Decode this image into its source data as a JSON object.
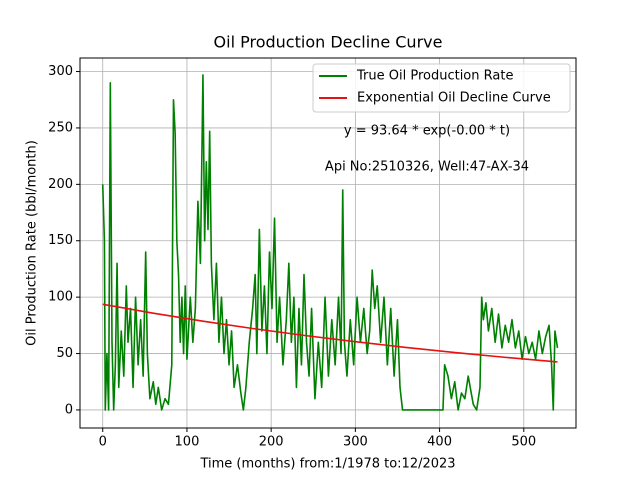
{
  "chart_data": {
    "type": "line",
    "title": "Oil Production Decline Curve",
    "xlabel": "Time (months) from:1/1978 to:12/2023",
    "ylabel": "Oil Production Rate (bbl/month)",
    "annotations": [
      "y = 93.64 * exp(-0.00 * t)",
      "Api No:2510326, Well:47-AX-34"
    ],
    "xlim": [
      -27,
      562
    ],
    "ylim": [
      -16,
      312
    ],
    "xticks": [
      0,
      100,
      200,
      300,
      400,
      500
    ],
    "yticks": [
      0,
      50,
      100,
      150,
      200,
      250,
      300
    ],
    "grid": true,
    "legend": "upper right",
    "series": [
      {
        "name": "True Oil Production Rate",
        "color": "#008000",
        "x": [
          0,
          2,
          3,
          5,
          7,
          9,
          11,
          13,
          15,
          17,
          19,
          22,
          25,
          28,
          30,
          33,
          36,
          39,
          42,
          45,
          48,
          51,
          53,
          56,
          60,
          63,
          66,
          70,
          74,
          78,
          82,
          84,
          86,
          88,
          90,
          92,
          94,
          96,
          98,
          100,
          104,
          107,
          110,
          113,
          116,
          119,
          121,
          123,
          125,
          127,
          129,
          132,
          135,
          138,
          141,
          144,
          147,
          150,
          153,
          156,
          160,
          164,
          167,
          170,
          174,
          178,
          181,
          183,
          186,
          189,
          192,
          195,
          198,
          201,
          204,
          207,
          210,
          214,
          218,
          221,
          224,
          227,
          230,
          233,
          236,
          239,
          242,
          245,
          248,
          252,
          256,
          260,
          264,
          268,
          272,
          276,
          280,
          283,
          285,
          287,
          290,
          294,
          298,
          302,
          306,
          310,
          314,
          317,
          320,
          323,
          326,
          330,
          334,
          338,
          342,
          346,
          350,
          353,
          356,
          380,
          404,
          406,
          410,
          414,
          418,
          422,
          426,
          430,
          434,
          440,
          444,
          448,
          450,
          452,
          455,
          458,
          462,
          466,
          470,
          474,
          478,
          482,
          486,
          490,
          494,
          498,
          502,
          506,
          510,
          514,
          518,
          522,
          526,
          530,
          533,
          535,
          537,
          540
        ],
        "values": [
          200,
          150,
          0,
          50,
          0,
          290,
          60,
          0,
          40,
          130,
          20,
          70,
          30,
          110,
          60,
          90,
          20,
          100,
          40,
          80,
          30,
          140,
          50,
          10,
          25,
          5,
          20,
          0,
          10,
          5,
          40,
          275,
          245,
          150,
          120,
          60,
          100,
          50,
          110,
          45,
          100,
          60,
          90,
          185,
          130,
          297,
          150,
          220,
          160,
          247,
          130,
          80,
          130,
          60,
          100,
          50,
          80,
          40,
          70,
          20,
          40,
          15,
          0,
          20,
          60,
          90,
          120,
          50,
          160,
          70,
          110,
          50,
          140,
          90,
          170,
          60,
          100,
          40,
          80,
          130,
          60,
          100,
          20,
          90,
          40,
          120,
          60,
          30,
          90,
          10,
          60,
          20,
          100,
          30,
          80,
          40,
          100,
          50,
          195,
          60,
          30,
          80,
          40,
          100,
          60,
          90,
          50,
          70,
          124,
          90,
          110,
          60,
          100,
          40,
          90,
          30,
          80,
          20,
          0,
          0,
          0,
          40,
          30,
          10,
          25,
          0,
          15,
          10,
          30,
          5,
          0,
          20,
          100,
          80,
          95,
          70,
          90,
          60,
          85,
          55,
          75,
          60,
          80,
          55,
          70,
          45,
          65,
          50,
          60,
          45,
          70,
          50,
          65,
          75,
          40,
          0,
          70,
          55
        ]
      },
      {
        "name": "Exponential Oil Decline Curve",
        "color": "#e81010",
        "x": [
          0,
          60,
          120,
          180,
          240,
          300,
          360,
          420,
          480,
          540
        ],
        "values": [
          93.64,
          85.8,
          78.6,
          72.0,
          66.0,
          60.5,
          55.4,
          50.8,
          46.5,
          42.6
        ]
      }
    ]
  }
}
